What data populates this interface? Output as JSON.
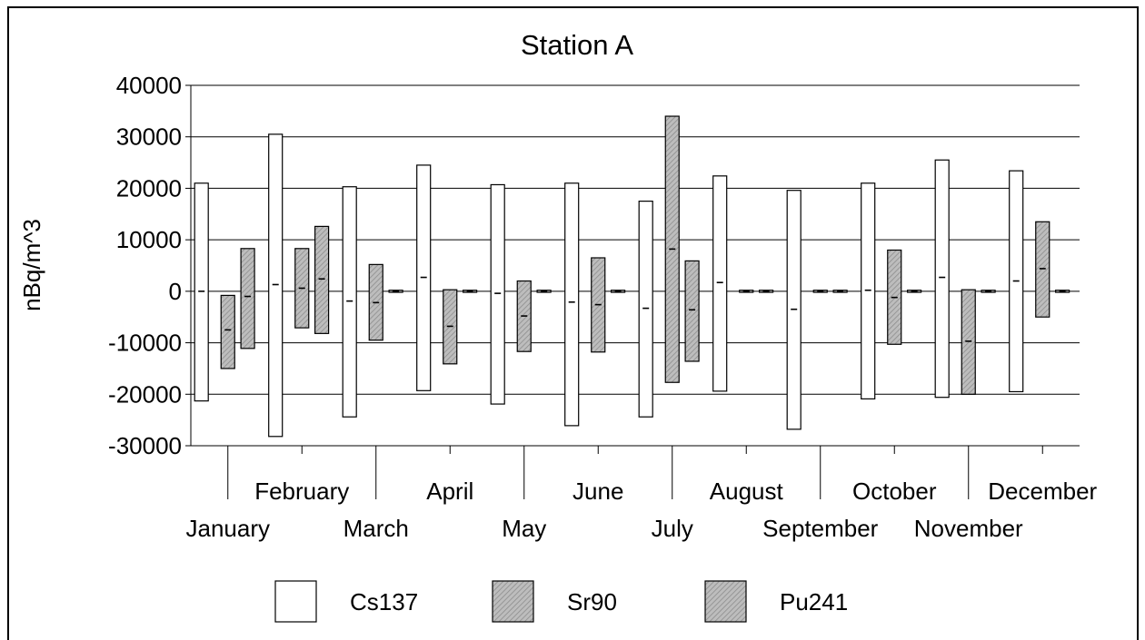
{
  "chart_data": {
    "type": "bar",
    "title": "Station A",
    "xlabel": "",
    "ylabel": "nBq/m^3",
    "ylim": [
      -30000,
      40000
    ],
    "yticks": [
      40000,
      30000,
      20000,
      10000,
      0,
      -10000,
      -20000,
      -30000
    ],
    "ytick_labels": [
      "40000",
      "30000",
      "20000",
      "10000",
      "0",
      "-10000",
      "-20000",
      "-30000"
    ],
    "grid": true,
    "legend_position": "bottom",
    "categories": [
      "January",
      "February",
      "March",
      "April",
      "May",
      "June",
      "July",
      "August",
      "September",
      "October",
      "November",
      "December"
    ],
    "series": [
      {
        "name": "Cs137",
        "style": "white",
        "low": [
          -21300,
          -28200,
          -24400,
          -19300,
          -21900,
          -26100,
          -24400,
          -19400,
          -26800,
          -20900,
          -20600,
          -19500
        ],
        "high": [
          21000,
          30500,
          20300,
          24500,
          20700,
          21000,
          17500,
          22400,
          19600,
          21000,
          25500,
          23400
        ],
        "mid": [
          0,
          1300,
          -1900,
          2700,
          -400,
          -2100,
          -3300,
          1700,
          -3500,
          200,
          2700,
          2000
        ]
      },
      {
        "name": "Sr90",
        "style": "hatched",
        "low": [
          -15000,
          -7100,
          -9500,
          -14100,
          -11700,
          -11800,
          -17700,
          -200,
          -200,
          -10300,
          -20000,
          -5000
        ],
        "high": [
          -800,
          8300,
          5200,
          300,
          2000,
          6500,
          34000,
          200,
          200,
          8000,
          300,
          13500
        ],
        "mid": [
          -7500,
          600,
          -2200,
          -6800,
          -4800,
          -2600,
          8200,
          0,
          0,
          -1200,
          -9700,
          4400
        ]
      },
      {
        "name": "Pu241",
        "style": "hatched",
        "low": [
          -11100,
          -8200,
          -200,
          -200,
          -200,
          -200,
          -13600,
          -200,
          -200,
          -200,
          -200,
          -200
        ],
        "high": [
          8300,
          12600,
          200,
          200,
          200,
          200,
          5900,
          200,
          200,
          200,
          200,
          200
        ],
        "mid": [
          -1000,
          2400,
          0,
          0,
          0,
          0,
          -3600,
          0,
          0,
          0,
          0,
          0
        ]
      }
    ]
  }
}
